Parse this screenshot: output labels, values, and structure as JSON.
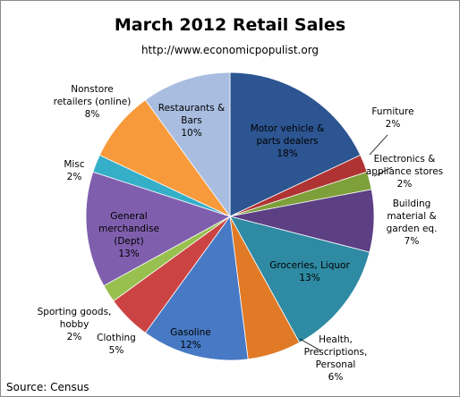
{
  "chart_data": {
    "type": "pie",
    "title": "March 2012 Retail Sales",
    "subtitle": "http://www.economicpopulist.org",
    "source": "Source:  Census",
    "slices": [
      {
        "label_lines": [
          "Motor vehicle &",
          "parts dealers",
          "18%"
        ],
        "value": 18,
        "color": "#2c5591"
      },
      {
        "label_lines": [
          "Furniture",
          "2%"
        ],
        "value": 2,
        "color": "#b03333"
      },
      {
        "label_lines": [
          "Electronics &",
          "appliance stores",
          "2%"
        ],
        "value": 2,
        "color": "#7ea03b"
      },
      {
        "label_lines": [
          "Building",
          "material &",
          "garden eq.",
          "7%"
        ],
        "value": 7,
        "color": "#5d3f84"
      },
      {
        "label_lines": [
          "Groceries, Liquor",
          "13%"
        ],
        "value": 13,
        "color": "#2f8aa3"
      },
      {
        "label_lines": [
          "Health,",
          "Prescriptions,",
          "Personal",
          "6%"
        ],
        "value": 6,
        "color": "#e07a27"
      },
      {
        "label_lines": [
          "Gasoline",
          "12%"
        ],
        "value": 12,
        "color": "#4779c4"
      },
      {
        "label_lines": [
          "Clothing",
          "5%"
        ],
        "value": 5,
        "color": "#cb4443"
      },
      {
        "label_lines": [
          "Sporting goods,",
          "hobby",
          "2%"
        ],
        "value": 2,
        "color": "#98c04f"
      },
      {
        "label_lines": [
          "General",
          "merchandise",
          "(Dept)",
          "13%"
        ],
        "value": 13,
        "color": "#7f5fad"
      },
      {
        "label_lines": [
          "Misc",
          "2%"
        ],
        "value": 2,
        "color": "#35aec8"
      },
      {
        "label_lines": [
          "Nonstore",
          "retailers (online)",
          "8%"
        ],
        "value": 8,
        "color": "#f79a3b"
      },
      {
        "label_lines": [
          "Restaurants &",
          "Bars",
          "10%"
        ],
        "value": 10,
        "color": "#a9bde0"
      }
    ]
  }
}
